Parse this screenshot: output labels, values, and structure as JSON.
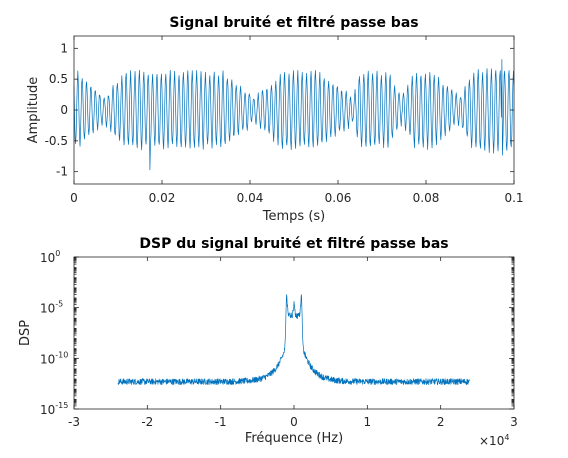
{
  "chart_data": [
    {
      "type": "line",
      "title": "Signal bruité et filtré passe bas",
      "xlabel": "Temps (s)",
      "ylabel": "Amplitude",
      "xlim": [
        0,
        0.1
      ],
      "ylim": [
        -1.2,
        1.2
      ],
      "xticks": [
        0,
        0.02,
        0.04,
        0.06,
        0.08,
        0.1
      ],
      "xtick_labels": [
        "0",
        "0.02",
        "0.04",
        "0.06",
        "0.08",
        "0.1"
      ],
      "yticks": [
        -1,
        -0.5,
        0,
        0.5,
        1
      ],
      "ytick_labels": [
        "-1",
        "-0.5",
        "0",
        "0.5",
        "1"
      ],
      "grid": false,
      "series": [
        {
          "color": "#0072bd",
          "envelope_breakpoints": {
            "t": [
              0,
              0.001,
              0.007,
              0.0115,
              0.018,
              0.024,
              0.0245,
              0.034,
              0.0408,
              0.0475,
              0.048,
              0.0555,
              0.0635,
              0.065,
              0.0715,
              0.0745,
              0.0775,
              0.0815,
              0.0875,
              0.0905,
              0.0975,
              0.1
            ],
            "amplitude": [
              0.6,
              0.6,
              0.2,
              0.6,
              0.6,
              0.6,
              0.6,
              0.6,
              0.2,
              0.6,
              0.6,
              0.6,
              0.2,
              0.6,
              0.6,
              0.2,
              0.6,
              0.6,
              0.2,
              0.6,
              0.7,
              0.6
            ]
          },
          "carrier_frequency_hz": 1000,
          "noise_amplitude": 0.05,
          "sample_rate_hz": 8000,
          "spikes": [
            {
              "t": 0.0173,
              "y": -0.97
            },
            {
              "t": 0.0973,
              "y": 0.82
            }
          ]
        }
      ]
    },
    {
      "type": "line",
      "title": "DSP du signal bruité et filtré passe bas",
      "xlabel": "Fréquence (Hz)",
      "ylabel": "DSP",
      "x_multiplier": "×10",
      "x_multiplier_exponent": "4",
      "xlim": [
        -30000,
        30000
      ],
      "ylim_log10": [
        -15,
        0
      ],
      "y_scale": "log",
      "xticks": [
        -30000,
        -20000,
        -10000,
        0,
        10000,
        20000,
        30000
      ],
      "xtick_labels": [
        "-3",
        "-2",
        "-1",
        "0",
        "1",
        "2",
        "3"
      ],
      "yticks_log10": [
        -15,
        -10,
        -5,
        0
      ],
      "ytick_base": "10",
      "ytick_exponents": [
        "-15",
        "-10",
        "-5",
        "0"
      ],
      "grid": false,
      "series": [
        {
          "color": "#0072bd",
          "frequency_range_hz": [
            -24000,
            24000
          ],
          "noise_floor_log10": -12.3,
          "floor_jitter_log10": 0.6,
          "decay_scale_hz": 1400,
          "decay_amplitude_log10": 7.7,
          "peaks": [
            {
              "f": -1000,
              "log10": -3.7
            },
            {
              "f": 1000,
              "log10": -3.7
            }
          ],
          "center_plateau_log10": -5.8
        }
      ]
    }
  ]
}
